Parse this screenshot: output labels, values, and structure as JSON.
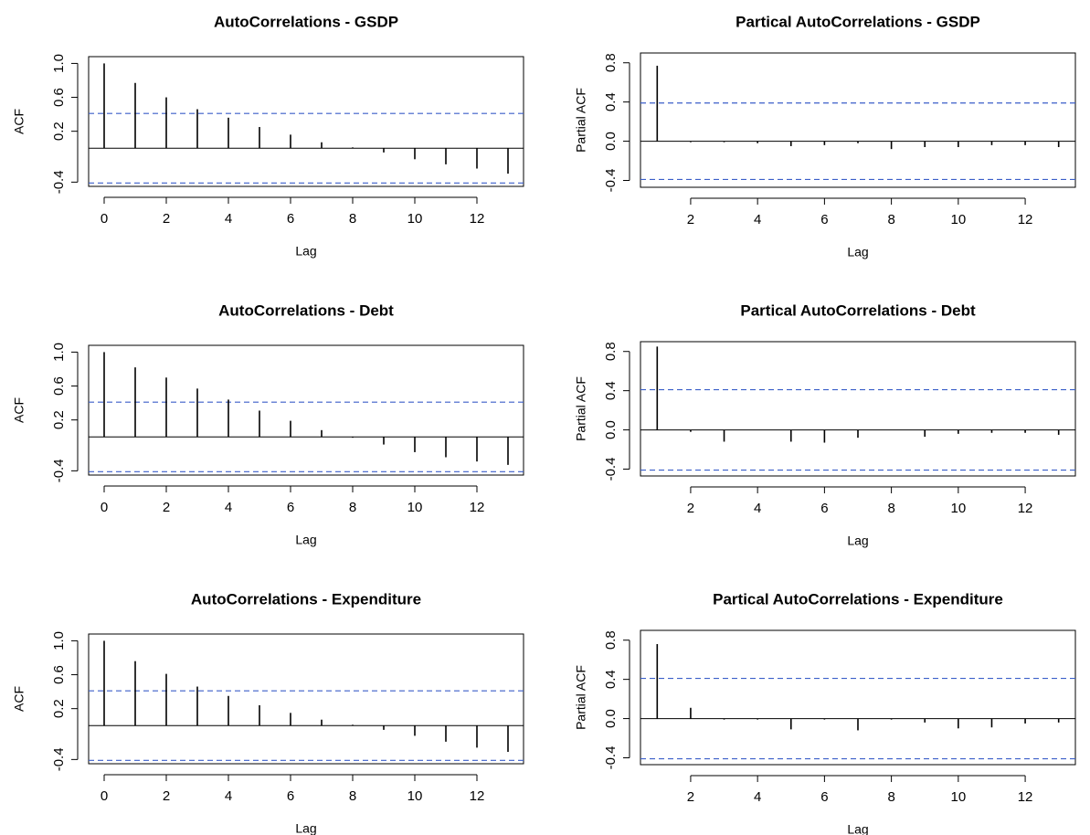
{
  "chart_data": [
    {
      "type": "stem",
      "title": "AutoCorrelations - GSDP",
      "x_label": "Lag",
      "y_label": "ACF",
      "x": [
        0,
        1,
        2,
        3,
        4,
        5,
        6,
        7,
        8,
        9,
        10,
        11,
        12,
        13
      ],
      "values": [
        1.0,
        0.77,
        0.6,
        0.46,
        0.36,
        0.25,
        0.16,
        0.07,
        0.01,
        -0.05,
        -0.13,
        -0.19,
        -0.24,
        -0.3
      ],
      "color": "#000000",
      "conf_bounds": [
        0.41,
        -0.41
      ],
      "bound_color": "#3b5fc9",
      "xlim": [
        -0.5,
        13.5
      ],
      "xticks": [
        0,
        2,
        4,
        6,
        8,
        10,
        12
      ],
      "ylim": [
        -0.45,
        1.08
      ],
      "yticks": [
        {
          "value": 1,
          "label": "1.0"
        },
        0.6,
        0.2,
        -0.4
      ]
    },
    {
      "type": "stem",
      "title": "Partical AutoCorrelations - GSDP",
      "x_label": "Lag",
      "y_label": "Partial ACF",
      "x": [
        1,
        2,
        3,
        4,
        5,
        6,
        7,
        8,
        9,
        10,
        11,
        12,
        13
      ],
      "values": [
        0.77,
        -0.01,
        -0.01,
        -0.02,
        -0.05,
        -0.04,
        -0.02,
        -0.08,
        -0.06,
        -0.06,
        -0.04,
        -0.04,
        -0.06
      ],
      "color": "#000000",
      "conf_bounds": [
        0.39,
        -0.39
      ],
      "bound_color": "#3b5fc9",
      "xlim": [
        0.5,
        13.5
      ],
      "xticks": [
        2,
        4,
        6,
        8,
        10,
        12
      ],
      "ylim": [
        -0.47,
        0.9
      ],
      "yticks": [
        0.8,
        0.4,
        {
          "value": 0,
          "label": "0.0"
        },
        -0.4
      ]
    },
    {
      "type": "stem",
      "title": "AutoCorrelations - Debt",
      "x_label": "Lag",
      "y_label": "ACF",
      "x": [
        0,
        1,
        2,
        3,
        4,
        5,
        6,
        7,
        8,
        9,
        10,
        11,
        12,
        13
      ],
      "values": [
        1.0,
        0.82,
        0.7,
        0.57,
        0.44,
        0.31,
        0.19,
        0.08,
        -0.01,
        -0.09,
        -0.18,
        -0.24,
        -0.29,
        -0.33
      ],
      "color": "#000000",
      "conf_bounds": [
        0.41,
        -0.41
      ],
      "bound_color": "#3b5fc9",
      "xlim": [
        -0.5,
        13.5
      ],
      "xticks": [
        0,
        2,
        4,
        6,
        8,
        10,
        12
      ],
      "ylim": [
        -0.45,
        1.08
      ],
      "yticks": [
        {
          "value": 1,
          "label": "1.0"
        },
        0.6,
        0.2,
        -0.4
      ]
    },
    {
      "type": "stem",
      "title": "Partical AutoCorrelations - Debt",
      "x_label": "Lag",
      "y_label": "Partial ACF",
      "x": [
        1,
        2,
        3,
        4,
        5,
        6,
        7,
        8,
        9,
        10,
        11,
        12,
        13
      ],
      "values": [
        0.85,
        -0.02,
        -0.12,
        0.0,
        -0.12,
        -0.13,
        -0.08,
        0.0,
        -0.07,
        -0.04,
        -0.03,
        -0.03,
        -0.05
      ],
      "color": "#000000",
      "conf_bounds": [
        0.41,
        -0.41
      ],
      "bound_color": "#3b5fc9",
      "xlim": [
        0.5,
        13.5
      ],
      "xticks": [
        2,
        4,
        6,
        8,
        10,
        12
      ],
      "ylim": [
        -0.47,
        0.9
      ],
      "yticks": [
        0.8,
        0.4,
        {
          "value": 0,
          "label": "0.0"
        },
        -0.4
      ]
    },
    {
      "type": "stem",
      "title": "AutoCorrelations - Expenditure",
      "x_label": "Lag",
      "y_label": "ACF",
      "x": [
        0,
        1,
        2,
        3,
        4,
        5,
        6,
        7,
        8,
        9,
        10,
        11,
        12,
        13
      ],
      "values": [
        1.0,
        0.76,
        0.61,
        0.46,
        0.35,
        0.24,
        0.15,
        0.07,
        0.01,
        -0.05,
        -0.12,
        -0.19,
        -0.26,
        -0.31
      ],
      "color": "#000000",
      "conf_bounds": [
        0.41,
        -0.41
      ],
      "bound_color": "#3b5fc9",
      "xlim": [
        -0.5,
        13.5
      ],
      "xticks": [
        0,
        2,
        4,
        6,
        8,
        10,
        12
      ],
      "ylim": [
        -0.45,
        1.08
      ],
      "yticks": [
        {
          "value": 1,
          "label": "1.0"
        },
        0.6,
        0.2,
        -0.4
      ]
    },
    {
      "type": "stem",
      "title": "Partical AutoCorrelations - Expenditure",
      "x_label": "Lag",
      "y_label": "Partial ACF",
      "x": [
        1,
        2,
        3,
        4,
        5,
        6,
        7,
        8,
        9,
        10,
        11,
        12,
        13
      ],
      "values": [
        0.76,
        0.11,
        -0.01,
        -0.01,
        -0.11,
        -0.01,
        -0.12,
        -0.01,
        -0.04,
        -0.1,
        -0.09,
        -0.05,
        -0.04
      ],
      "color": "#000000",
      "conf_bounds": [
        0.41,
        -0.41
      ],
      "bound_color": "#3b5fc9",
      "xlim": [
        0.5,
        13.5
      ],
      "xticks": [
        2,
        4,
        6,
        8,
        10,
        12
      ],
      "ylim": [
        -0.47,
        0.9
      ],
      "yticks": [
        0.8,
        0.4,
        {
          "value": 0,
          "label": "0.0"
        },
        -0.4
      ]
    }
  ]
}
